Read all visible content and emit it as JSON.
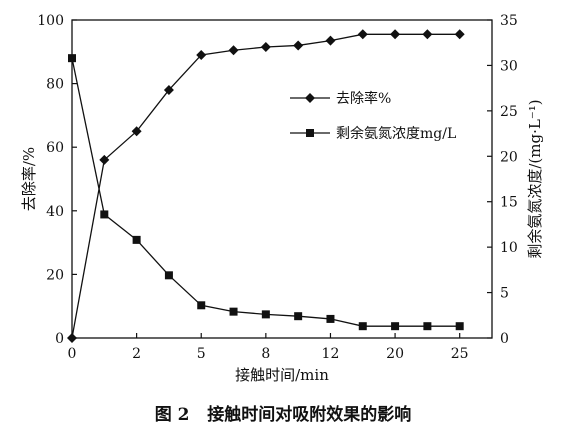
{
  "chart_data": {
    "type": "line",
    "caption": "图 2   接触时间对吸附效果的影响",
    "x_axis": {
      "label": "接触时间/min",
      "tick_labels": [
        "0",
        "2",
        "5",
        "8",
        "12",
        "20",
        "25"
      ],
      "tick_positions": [
        0,
        2,
        4,
        6,
        8,
        10,
        12
      ]
    },
    "y_left": {
      "label": "去除率/%",
      "ylim": [
        0,
        100
      ],
      "ticks": [
        0,
        20,
        40,
        60,
        80,
        100
      ]
    },
    "y_right": {
      "label": "剩余氨氮浓度/(mg·L⁻¹)",
      "ylim": [
        0,
        35
      ],
      "ticks": [
        0,
        5,
        10,
        15,
        20,
        25,
        30,
        35
      ]
    },
    "x": [
      0,
      1,
      2,
      3,
      4,
      5,
      6,
      7,
      8,
      9,
      10,
      11,
      12
    ],
    "series": [
      {
        "name": "去除率%",
        "axis": "left",
        "marker": "diamond",
        "values": [
          0,
          56,
          65,
          78,
          89,
          90.5,
          91.5,
          92,
          93.5,
          95.5,
          95.5,
          95.5,
          95.5
        ]
      },
      {
        "name": "剩余氨氮浓度mg/L",
        "axis": "right",
        "marker": "square",
        "values": [
          30.8,
          13.6,
          10.8,
          6.9,
          3.6,
          2.9,
          2.6,
          2.4,
          2.1,
          1.3,
          1.3,
          1.3,
          1.3
        ]
      }
    ],
    "legend_position": "upper-right",
    "grid": false,
    "colors": {
      "line": "#111111"
    }
  }
}
